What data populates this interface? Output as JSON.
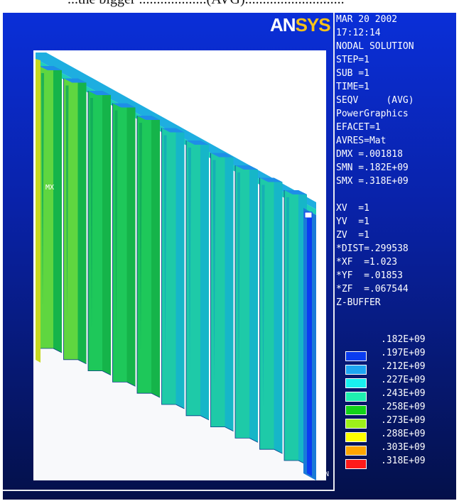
{
  "header_fragment": "...the bigger ...................(AVG)............................",
  "logo": {
    "part1": "AN",
    "part2": "SYS"
  },
  "info_lines": [
    "MAR 20 2002",
    "17:12:14",
    "NODAL SOLUTION",
    "STEP=1",
    "SUB =1",
    "TIME=1",
    "SEQV     (AVG)",
    "PowerGraphics",
    "EFACET=1",
    "AVRES=Mat",
    "DMX =.001818",
    "SMN =.182E+09",
    "SMX =.318E+09",
    "",
    "XV  =1",
    "YV  =1",
    "ZV  =1",
    "*DIST=.299538",
    "*XF  =1.023",
    "*YF  =.01853",
    "*ZF  =.067544",
    "Z-BUFFER"
  ],
  "markers": {
    "max": "MX",
    "min": "MN"
  },
  "legend": [
    {
      "value": ".182E+09",
      "color": "#ffffff"
    },
    {
      "value": ".197E+09",
      "color": "#0a3cf0"
    },
    {
      "value": ".212E+09",
      "color": "#1da6f2"
    },
    {
      "value": ".227E+09",
      "color": "#19eff0"
    },
    {
      "value": ".243E+09",
      "color": "#1ff0b0"
    },
    {
      "value": ".258E+09",
      "color": "#13d319"
    },
    {
      "value": ".273E+09",
      "color": "#9df01a"
    },
    {
      "value": ".288E+09",
      "color": "#ffff00"
    },
    {
      "value": ".303E+09",
      "color": "#ffa500"
    },
    {
      "value": ".318E+09",
      "color": "#ff1a1a"
    }
  ],
  "colors": {
    "background_top": "#0a2fd8",
    "background_bottom": "#04104a",
    "model_primary": "#18c8a8",
    "model_green": "#16c84a",
    "model_top": "#22b8e8"
  }
}
